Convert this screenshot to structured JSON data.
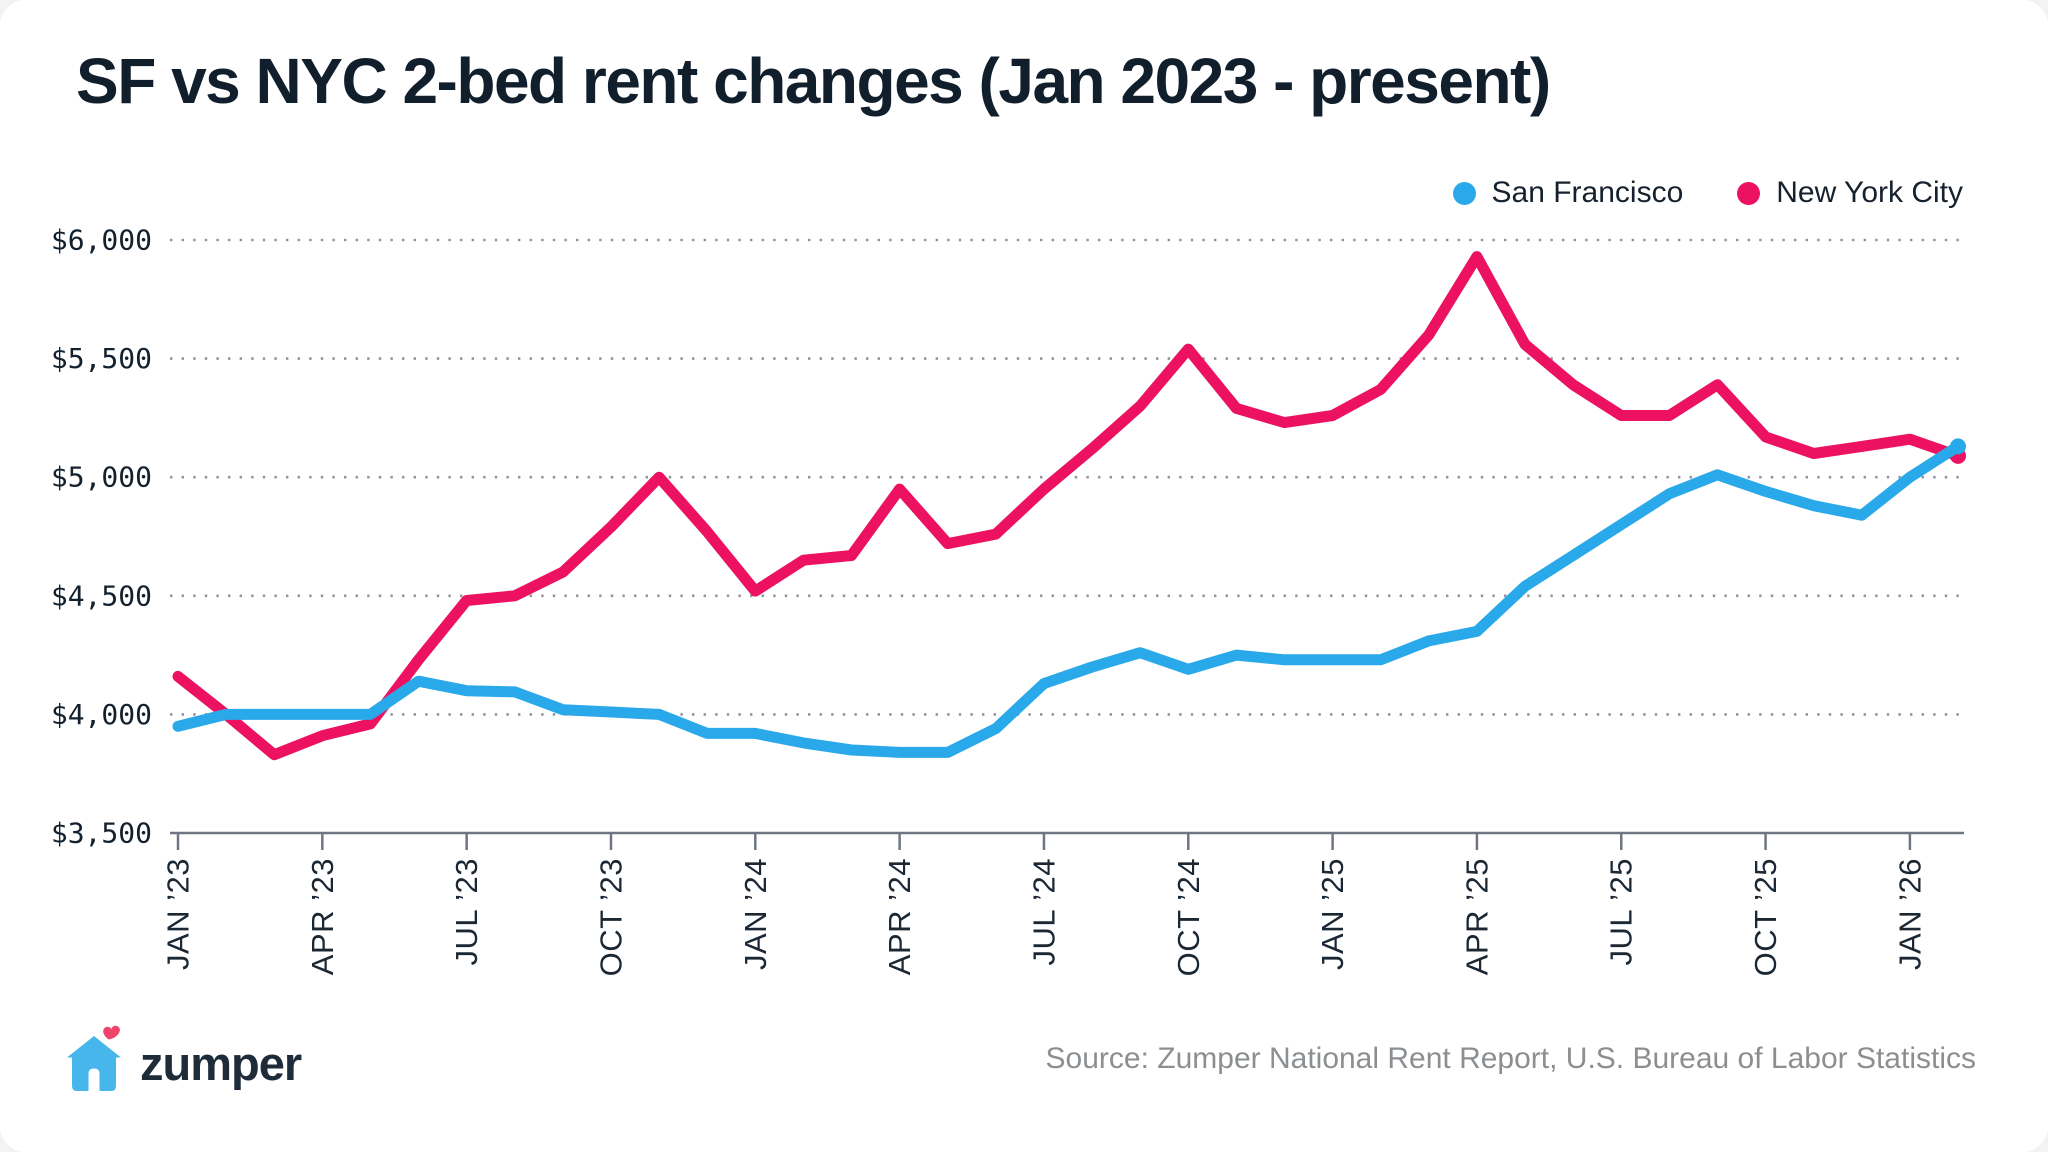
{
  "title": "SF vs NYC 2-bed rent changes (Jan 2023 - present)",
  "legend": {
    "items": [
      {
        "label": "San Francisco",
        "color": "#29A9E9"
      },
      {
        "label": "New York City",
        "color": "#EC1261"
      }
    ]
  },
  "footer": {
    "brand": "zumper",
    "source": "Source: Zumper National Rent Report, U.S. Bureau of Labor Statistics"
  },
  "colors": {
    "sf_line": "#29A9E9",
    "nyc_line": "#EC1261",
    "grid_dots": "#8f949a",
    "axis": "#6e7781",
    "tick_label": "#1b2733",
    "logo_house": "#47B7EB",
    "logo_heart": "#F0436B"
  },
  "chart_data": {
    "type": "line",
    "title": "SF vs NYC 2-bed rent changes (Jan 2023 - present)",
    "x_unit": "month",
    "n_points": 38,
    "x_start": "JAN 2023",
    "x_end": "FEB 2026",
    "x_tick_every": 3,
    "x_tick_labels": [
      "JAN ’23",
      "APR ’23",
      "JUL ’23",
      "OCT ’23",
      "JAN ’24",
      "APR ’24",
      "JUL ’24",
      "OCT ’24",
      "JAN ’25",
      "APR ’25",
      "JUL ’25",
      "OCT ’25",
      "JAN ’26"
    ],
    "ylim": [
      3500,
      6000
    ],
    "y_tick_step": 500,
    "y_tick_labels": [
      "$3,500",
      "$4,000",
      "$4,500",
      "$5,000",
      "$5,500",
      "$6,000"
    ],
    "grid": "dotted horizontal lines at labeled values above baseline",
    "legend_position": "top-right",
    "series": [
      {
        "name": "San Francisco",
        "color": "#29A9E9",
        "values": [
          3950,
          4000,
          4000,
          4000,
          4000,
          4140,
          4100,
          4095,
          4020,
          4010,
          4000,
          3920,
          3920,
          3880,
          3850,
          3840,
          3840,
          3940,
          4130,
          4200,
          4260,
          4190,
          4250,
          4230,
          4230,
          4230,
          4310,
          4350,
          4540,
          4670,
          4800,
          4930,
          5010,
          4940,
          4880,
          4840,
          5000,
          5130
        ]
      },
      {
        "name": "New York City",
        "color": "#EC1261",
        "values": [
          4160,
          4000,
          3830,
          3910,
          3960,
          4230,
          4480,
          4500,
          4600,
          4790,
          5000,
          4770,
          4520,
          4650,
          4670,
          4950,
          4720,
          4760,
          4950,
          5120,
          5300,
          5540,
          5290,
          5230,
          5260,
          5370,
          5600,
          5930,
          5560,
          5390,
          5260,
          5260,
          5390,
          5170,
          5100,
          5130,
          5160,
          5090
        ]
      }
    ]
  }
}
